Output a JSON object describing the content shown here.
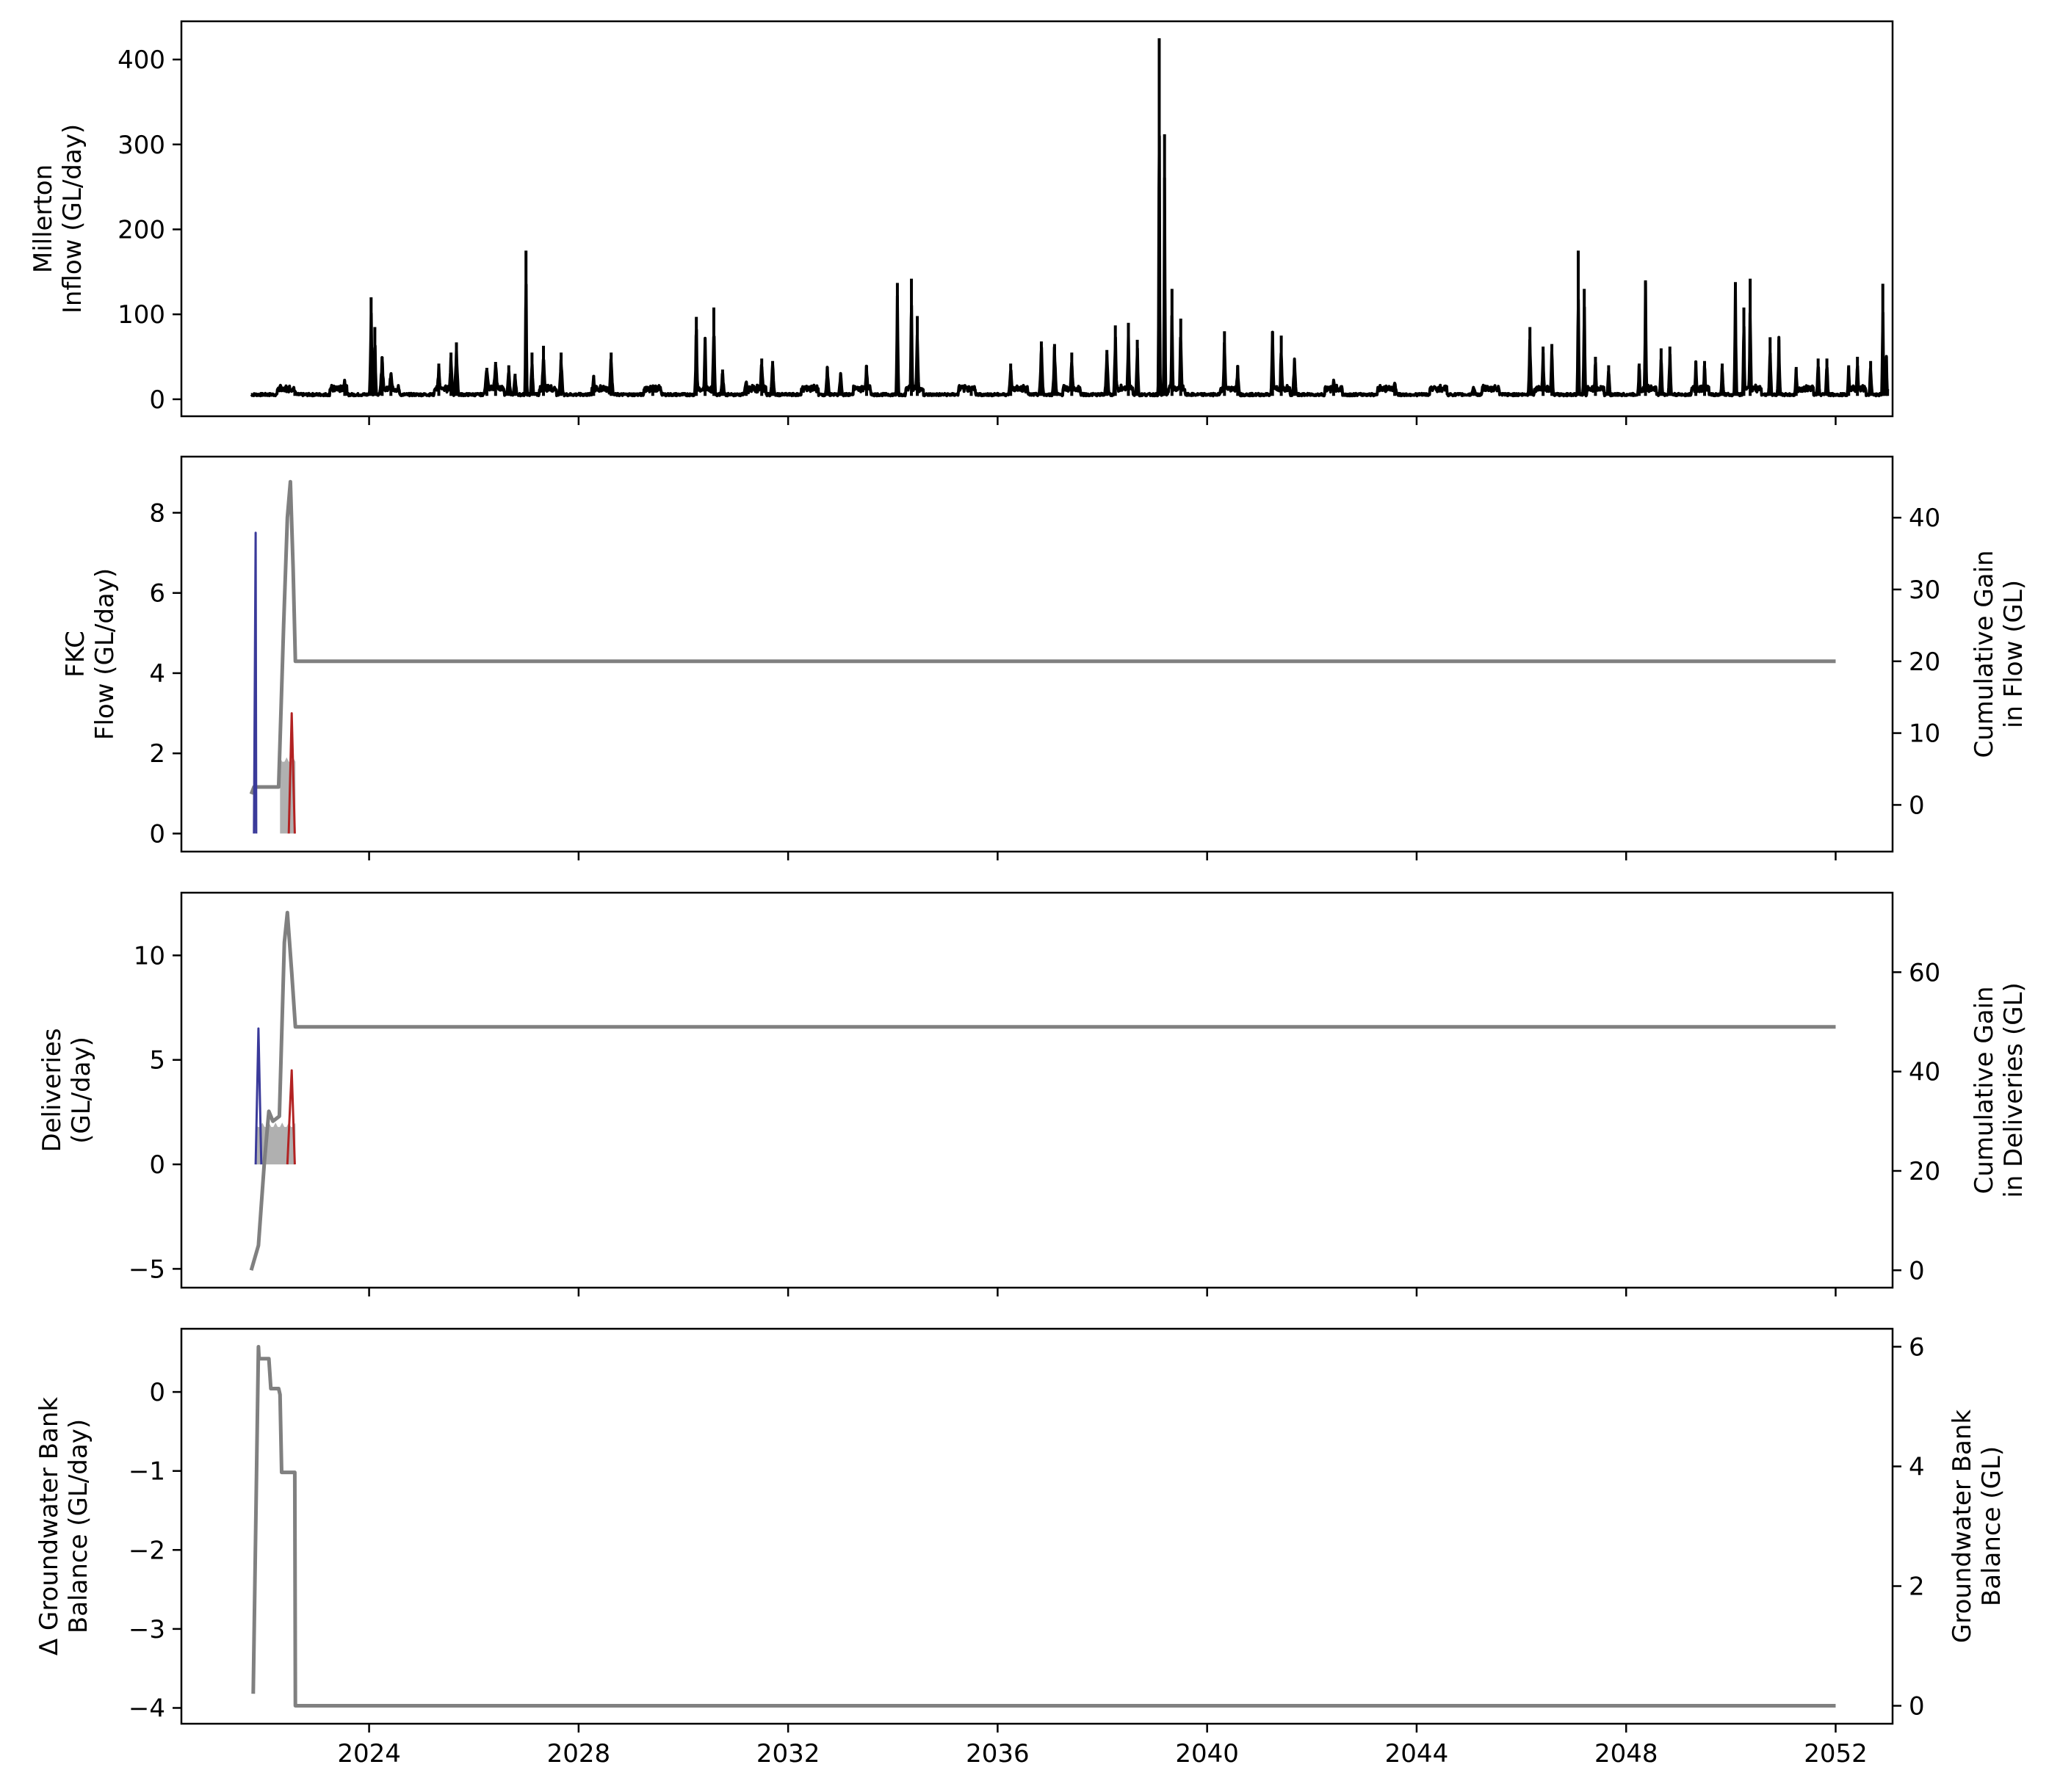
{
  "chart_data": [
    {
      "type": "line",
      "panel": "top",
      "ylabel": [
        "Millerton",
        "Inflow (GL/day)"
      ],
      "x_ticks": [
        "2024",
        "2028",
        "2032",
        "2036",
        "2040",
        "2044",
        "2048",
        "2052"
      ],
      "xlim": [
        "2020-06-01",
        "2053-02-01"
      ],
      "y_ticks": [
        "0",
        "100",
        "200",
        "300",
        "400"
      ],
      "ylim": [
        -20,
        445
      ],
      "series": [
        {
          "color": "#000000",
          "baseline": 4,
          "events": [
            {
              "x": "2022-08-01",
              "width_days": 30,
              "peak": 8
            },
            {
              "x": "2023-07-15",
              "width_days": 25,
              "peak": 22
            },
            {
              "x": "2024-01-15",
              "width_days": 15,
              "peak": 120
            },
            {
              "x": "2024-02-10",
              "width_days": 15,
              "peak": 85
            },
            {
              "x": "2024-04-01",
              "width_days": 25,
              "peak": 50
            },
            {
              "x": "2024-06-01",
              "width_days": 30,
              "peak": 30
            },
            {
              "x": "2025-05-01",
              "width_days": 20,
              "peak": 42
            },
            {
              "x": "2025-07-25",
              "width_days": 20,
              "peak": 55
            },
            {
              "x": "2025-09-01",
              "width_days": 20,
              "peak": 67
            },
            {
              "x": "2026-04-01",
              "width_days": 30,
              "peak": 37
            },
            {
              "x": "2026-06-01",
              "width_days": 30,
              "peak": 44
            },
            {
              "x": "2026-09-01",
              "width_days": 20,
              "peak": 40
            },
            {
              "x": "2026-10-15",
              "width_days": 20,
              "peak": 30
            },
            {
              "x": "2026-12-30",
              "width_days": 10,
              "peak": 175
            },
            {
              "x": "2027-02-10",
              "width_days": 15,
              "peak": 55
            },
            {
              "x": "2027-05-01",
              "width_days": 20,
              "peak": 63
            },
            {
              "x": "2027-09-01",
              "width_days": 20,
              "peak": 55
            },
            {
              "x": "2028-04-15",
              "width_days": 20,
              "peak": 28
            },
            {
              "x": "2028-08-15",
              "width_days": 20,
              "peak": 55
            },
            {
              "x": "2029-06-01",
              "width_days": 30,
              "peak": 10
            },
            {
              "x": "2030-04-01",
              "width_days": 15,
              "peak": 97
            },
            {
              "x": "2030-06-01",
              "width_days": 15,
              "peak": 72
            },
            {
              "x": "2030-08-01",
              "width_days": 15,
              "peak": 108
            },
            {
              "x": "2030-10-01",
              "width_days": 20,
              "peak": 35
            },
            {
              "x": "2031-03-15",
              "width_days": 30,
              "peak": 20
            },
            {
              "x": "2031-07-01",
              "width_days": 20,
              "peak": 48
            },
            {
              "x": "2031-09-15",
              "width_days": 20,
              "peak": 45
            },
            {
              "x": "2032-10-01",
              "width_days": 20,
              "peak": 38
            },
            {
              "x": "2033-01-01",
              "width_days": 20,
              "peak": 30
            },
            {
              "x": "2033-07-01",
              "width_days": 20,
              "peak": 40
            },
            {
              "x": "2034-02-01",
              "width_days": 12,
              "peak": 137
            },
            {
              "x": "2034-05-10",
              "width_days": 12,
              "peak": 142
            },
            {
              "x": "2034-06-20",
              "width_days": 15,
              "peak": 98
            },
            {
              "x": "2035-07-01",
              "width_days": 20,
              "peak": 10
            },
            {
              "x": "2036-04-01",
              "width_days": 20,
              "peak": 42
            },
            {
              "x": "2036-11-01",
              "width_days": 20,
              "peak": 68
            },
            {
              "x": "2037-02-01",
              "width_days": 20,
              "peak": 65
            },
            {
              "x": "2037-06-01",
              "width_days": 20,
              "peak": 55
            },
            {
              "x": "2038-02-01",
              "width_days": 20,
              "peak": 58
            },
            {
              "x": "2038-04-01",
              "width_days": 15,
              "peak": 87
            },
            {
              "x": "2038-07-01",
              "width_days": 15,
              "peak": 90
            },
            {
              "x": "2038-09-01",
              "width_days": 15,
              "peak": 70
            },
            {
              "x": "2039-02-01",
              "width_days": 10,
              "peak": 425
            },
            {
              "x": "2039-03-10",
              "width_days": 10,
              "peak": 312
            },
            {
              "x": "2039-05-01",
              "width_days": 12,
              "peak": 130
            },
            {
              "x": "2039-07-01",
              "width_days": 15,
              "peak": 95
            },
            {
              "x": "2040-05-01",
              "width_days": 15,
              "peak": 80
            },
            {
              "x": "2040-08-01",
              "width_days": 20,
              "peak": 40
            },
            {
              "x": "2041-04-01",
              "width_days": 15,
              "peak": 80
            },
            {
              "x": "2041-06-01",
              "width_days": 15,
              "peak": 75
            },
            {
              "x": "2041-09-01",
              "width_days": 20,
              "peak": 45
            },
            {
              "x": "2042-06-01",
              "width_days": 30,
              "peak": 20
            },
            {
              "x": "2043-08-01",
              "width_days": 30,
              "peak": 18
            },
            {
              "x": "2045-02-01",
              "width_days": 30,
              "peak": 12
            },
            {
              "x": "2046-03-01",
              "width_days": 15,
              "peak": 85
            },
            {
              "x": "2046-06-01",
              "width_days": 15,
              "peak": 62
            },
            {
              "x": "2046-08-01",
              "width_days": 15,
              "peak": 65
            },
            {
              "x": "2047-02-01",
              "width_days": 10,
              "peak": 175
            },
            {
              "x": "2047-03-15",
              "width_days": 12,
              "peak": 130
            },
            {
              "x": "2047-06-01",
              "width_days": 15,
              "peak": 50
            },
            {
              "x": "2047-09-01",
              "width_days": 15,
              "peak": 40
            },
            {
              "x": "2048-04-01",
              "width_days": 15,
              "peak": 42
            },
            {
              "x": "2048-05-15",
              "width_days": 12,
              "peak": 140
            },
            {
              "x": "2048-09-01",
              "width_days": 15,
              "peak": 60
            },
            {
              "x": "2048-11-01",
              "width_days": 15,
              "peak": 62
            },
            {
              "x": "2049-05-01",
              "width_days": 15,
              "peak": 45
            },
            {
              "x": "2049-07-01",
              "width_days": 15,
              "peak": 45
            },
            {
              "x": "2049-11-01",
              "width_days": 15,
              "peak": 42
            },
            {
              "x": "2050-02-01",
              "width_days": 12,
              "peak": 138
            },
            {
              "x": "2050-04-01",
              "width_days": 12,
              "peak": 108
            },
            {
              "x": "2050-05-15",
              "width_days": 12,
              "peak": 142
            },
            {
              "x": "2050-10-01",
              "width_days": 15,
              "peak": 73
            },
            {
              "x": "2050-12-01",
              "width_days": 15,
              "peak": 70
            },
            {
              "x": "2051-04-01",
              "width_days": 15,
              "peak": 38
            },
            {
              "x": "2051-09-01",
              "width_days": 15,
              "peak": 48
            },
            {
              "x": "2051-11-01",
              "width_days": 15,
              "peak": 48
            },
            {
              "x": "2052-04-01",
              "width_days": 15,
              "peak": 40
            },
            {
              "x": "2052-06-01",
              "width_days": 15,
              "peak": 50
            },
            {
              "x": "2052-09-01",
              "width_days": 15,
              "peak": 45
            },
            {
              "x": "2052-12-01",
              "width_days": 10,
              "peak": 35
            },
            {
              "x": "2052-12-20",
              "width_days": 10,
              "peak": 50
            },
            {
              "x": "2052-11-25",
              "width_days": 10,
              "peak": 136
            },
            {
              "x": "2052-12-28",
              "width_days": 8,
              "peak": 12
            }
          ]
        }
      ]
    },
    {
      "type": "line",
      "panel": "fkc",
      "ylabel": [
        "FKC",
        "Flow (GL/day)"
      ],
      "ylabel_right": [
        "Cumulative Gain",
        "in Flow (GL)"
      ],
      "x_ticks": [
        "2024",
        "2028",
        "2032",
        "2036",
        "2040",
        "2044",
        "2048",
        "2052"
      ],
      "xlim": [
        "2020-06-01",
        "2053-02-01"
      ],
      "y_ticks": [
        "0",
        "2",
        "4",
        "6",
        "8"
      ],
      "ylim": [
        -0.45,
        9.4
      ],
      "y_right_ticks": [
        "0",
        "10",
        "20",
        "30",
        "40"
      ],
      "ylim_right": [
        -6.5,
        48.5
      ],
      "series": [
        {
          "name": "",
          "color": "#808080",
          "axis": "right",
          "x": [
            "2021-10-01",
            "2021-10-20",
            "2021-11-05",
            "2022-04-10",
            "2022-05-15",
            "2022-06-10",
            "2022-07-01",
            "2022-07-20",
            "2022-08-05",
            "2052-01-01"
          ],
          "y": [
            1.5,
            2.5,
            2.5,
            2.5,
            25,
            40,
            45,
            33,
            20,
            20
          ]
        },
        {
          "name": "",
          "color": "#3a3a9a",
          "axis": "left",
          "x": [
            "2021-10-20",
            "2021-11-01",
            "2021-11-05"
          ],
          "y": [
            0,
            7.5,
            0
          ]
        },
        {
          "name": "",
          "color": "#b22222",
          "axis": "left",
          "x": [
            "2022-06-20",
            "2022-07-10",
            "2022-08-01"
          ],
          "y": [
            0,
            3.0,
            0
          ]
        },
        {
          "name": "",
          "color": "#b0b0b0",
          "fill": true,
          "axis": "left",
          "x": [
            "2022-04-20",
            "2022-08-05"
          ],
          "y": [
            1.9,
            1.9
          ]
        }
      ]
    },
    {
      "type": "line",
      "panel": "deliveries",
      "ylabel": [
        "Deliveries",
        "(GL/day)"
      ],
      "ylabel_right": [
        "Cumulative Gain",
        "in Deliveries (GL)"
      ],
      "x_ticks": [
        "2024",
        "2028",
        "2032",
        "2036",
        "2040",
        "2044",
        "2048",
        "2052"
      ],
      "xlim": [
        "2020-06-01",
        "2053-02-01"
      ],
      "y_ticks": [
        "−5",
        "0",
        "5",
        "10"
      ],
      "ylim": [
        -5.9,
        13.0
      ],
      "y_right_ticks": [
        "0",
        "20",
        "40",
        "60"
      ],
      "ylim_right": [
        -3.5,
        76
      ],
      "series": [
        {
          "name": "",
          "color": "#808080",
          "axis": "right",
          "x": [
            "2021-10-01",
            "2021-11-20",
            "2022-01-01",
            "2022-02-01",
            "2022-03-01",
            "2022-04-15",
            "2022-05-20",
            "2022-06-10",
            "2022-07-10",
            "2022-08-05",
            "2052-01-01"
          ],
          "y": [
            0,
            5,
            22,
            32,
            30,
            31,
            66,
            72,
            60,
            49,
            49
          ]
        },
        {
          "name": "",
          "color": "#3a3a9a",
          "axis": "left",
          "x": [
            "2021-11-01",
            "2021-11-20",
            "2021-12-10"
          ],
          "y": [
            0,
            6.5,
            0
          ]
        },
        {
          "name": "",
          "color": "#b22222",
          "axis": "left",
          "x": [
            "2022-06-10",
            "2022-07-10",
            "2022-08-01"
          ],
          "y": [
            0,
            4.5,
            0
          ]
        },
        {
          "name": "",
          "color": "#b0b0b0",
          "fill": true,
          "axis": "left",
          "x": [
            "2021-11-01",
            "2022-08-05"
          ],
          "y": [
            2.0,
            2.0
          ]
        }
      ]
    },
    {
      "type": "line",
      "panel": "groundwater",
      "ylabel": [
        "Δ Groundwater Bank",
        "Balance (GL/day)"
      ],
      "ylabel_right": [
        "Groundwater Bank",
        "Balance (GL)"
      ],
      "ylabel_right_color": "#808080",
      "x_ticks": [
        "2024",
        "2028",
        "2032",
        "2036",
        "2040",
        "2044",
        "2048",
        "2052"
      ],
      "xlim": [
        "2020-06-01",
        "2053-02-01"
      ],
      "y_ticks": [
        "−4",
        "−3",
        "−2",
        "−1",
        "0"
      ],
      "ylim": [
        -4.2,
        0.8
      ],
      "y_right_ticks": [
        "0",
        "2",
        "4",
        "6"
      ],
      "ylim_right": [
        -0.3,
        6.3
      ],
      "series": [
        {
          "name": "",
          "color": "#808080",
          "axis": "right",
          "x": [
            "2021-10-15",
            "2021-11-20",
            "2021-11-25",
            "2021-12-10",
            "2022-02-01",
            "2022-02-15",
            "2022-04-10",
            "2022-04-20",
            "2022-05-01",
            "2022-08-01",
            "2022-08-05",
            "2052-01-01"
          ],
          "y": [
            0.2,
            6.0,
            5.8,
            5.8,
            5.8,
            5.3,
            5.3,
            5.2,
            3.9,
            3.9,
            0.0,
            0.0
          ]
        }
      ]
    }
  ]
}
